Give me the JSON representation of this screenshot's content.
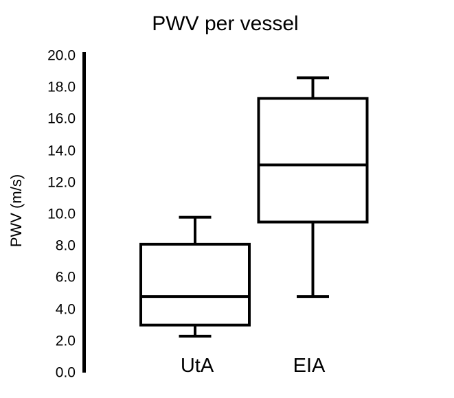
{
  "figure": {
    "background_color": "#ffffff",
    "ink_color": "#000000"
  },
  "chart_data": {
    "type": "boxplot",
    "title": "PWV per vessel",
    "ylabel": "PWV (m/s)",
    "xlabel": "",
    "categories": [
      "UtA",
      "EIA"
    ],
    "ylim": [
      0.0,
      20.0
    ],
    "y_tick_labels": [
      "20.0",
      "18.0",
      "16.0",
      "14.0",
      "12.0",
      "10.0",
      "8.0",
      "6.0",
      "4.0",
      "2.0",
      "0.0"
    ],
    "grid": false,
    "legend": "none",
    "series": [
      {
        "name": "UtA",
        "whisker_low": 2.3,
        "q1": 3.0,
        "median": 4.8,
        "q3": 8.1,
        "whisker_high": 9.8
      },
      {
        "name": "EIA",
        "whisker_low": 4.8,
        "q1": 9.5,
        "median": 13.1,
        "q3": 17.3,
        "whisker_high": 18.6
      }
    ]
  }
}
